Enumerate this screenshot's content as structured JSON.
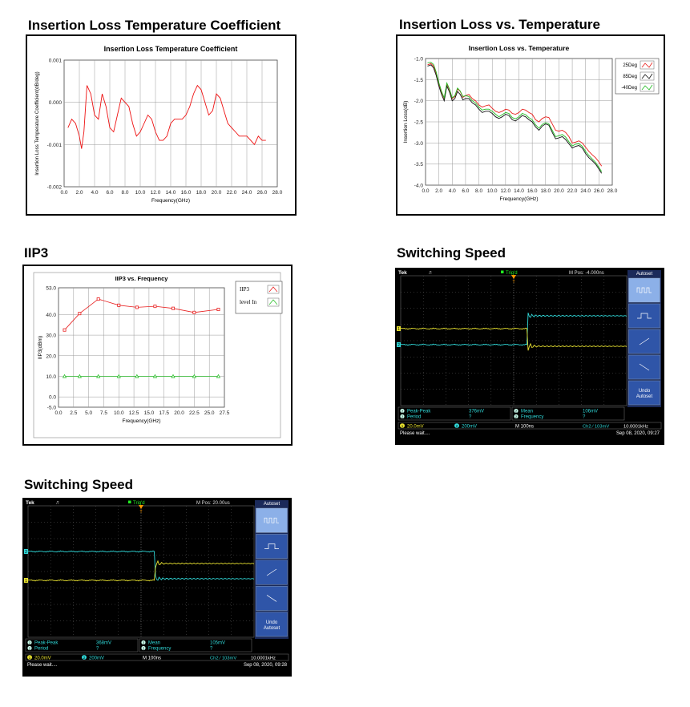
{
  "headings": {
    "il_coef": "Insertion Loss Temperature Coefficient",
    "il_temp": "Insertion Loss vs. Temperature",
    "iip3": "IIP3",
    "sw1": "Switching Speed",
    "sw2": "Switching Speed"
  },
  "chart_data": [
    {
      "id": "il_coef",
      "type": "line",
      "title": "Insertion Loss Temperature Coefficient",
      "xlabel": "Frequency(GHz)",
      "ylabel": "Insertion Loss Temperature Coefficient(dB/deg)",
      "xlim": [
        0,
        28
      ],
      "ylim": [
        -0.002,
        0.001
      ],
      "xticks": [
        "0.0",
        "2.0",
        "4.0",
        "6.0",
        "8.0",
        "10.0",
        "12.0",
        "14.0",
        "16.0",
        "18.0",
        "20.0",
        "22.0",
        "24.0",
        "26.0",
        "28.0"
      ],
      "yticks": [
        "-0.002",
        "-0.001",
        "0.000",
        "0.001"
      ],
      "grid": true,
      "color": "#ee1111",
      "series": [
        {
          "x": [
            0.5,
            1.0,
            1.5,
            2.0,
            2.3,
            2.6,
            3.0,
            3.5,
            4.0,
            4.5,
            5.0,
            5.5,
            6.0,
            6.5,
            7.0,
            7.5,
            8.0,
            8.5,
            9.0,
            9.5,
            10.0,
            10.5,
            11.0,
            11.5,
            12.0,
            12.5,
            13.0,
            13.5,
            14.0,
            14.5,
            15.0,
            15.5,
            16.0,
            16.5,
            17.0,
            17.5,
            18.0,
            18.5,
            19.0,
            19.5,
            20.0,
            20.5,
            21.0,
            21.5,
            22.0,
            22.5,
            23.0,
            23.5,
            24.0,
            24.5,
            25.0,
            25.5,
            26.0,
            26.5
          ],
          "y": [
            -0.0006,
            -0.0004,
            -0.0005,
            -0.0008,
            -0.0011,
            -0.0007,
            0.0004,
            0.0002,
            -0.0003,
            -0.0004,
            0.0002,
            -0.0001,
            -0.0006,
            -0.0007,
            -0.0003,
            0.0001,
            0.0,
            -0.0001,
            -0.0005,
            -0.0008,
            -0.0007,
            -0.0005,
            -0.0003,
            -0.0004,
            -0.0007,
            -0.0009,
            -0.0009,
            -0.0008,
            -0.0005,
            -0.0004,
            -0.0004,
            -0.0004,
            -0.0003,
            -0.0001,
            0.0002,
            0.0004,
            0.0003,
            0.0,
            -0.0003,
            -0.0002,
            0.0002,
            0.0001,
            -0.0002,
            -0.0005,
            -0.0006,
            -0.0007,
            -0.0008,
            -0.0008,
            -0.0008,
            -0.0009,
            -0.001,
            -0.0008,
            -0.0009,
            -0.0009
          ]
        }
      ]
    },
    {
      "id": "il_temp",
      "type": "line",
      "title": "Insertion Loss vs. Temperature",
      "xlabel": "Frequency(GHz)",
      "ylabel": "Insertion Loss(dB)",
      "xlim": [
        0,
        28
      ],
      "ylim": [
        -4.0,
        -1.0
      ],
      "xticks": [
        "0.0",
        "2.0",
        "4.0",
        "6.0",
        "8.0",
        "10.0",
        "12.0",
        "14.0",
        "16.0",
        "18.0",
        "20.0",
        "22.0",
        "24.0",
        "26.0",
        "28.0"
      ],
      "yticks": [
        "-4.0",
        "-3.5",
        "-3.0",
        "-2.5",
        "-2.0",
        "-1.5",
        "-1.0"
      ],
      "grid": true,
      "legend": "top-right",
      "x": [
        0.3,
        0.8,
        1.2,
        1.6,
        2.0,
        2.4,
        2.8,
        3.2,
        3.6,
        4.0,
        4.4,
        4.8,
        5.2,
        5.6,
        6.0,
        6.5,
        7.0,
        7.5,
        8.0,
        8.5,
        9.0,
        9.5,
        10.0,
        10.5,
        11.0,
        11.5,
        12.0,
        12.5,
        13.0,
        13.5,
        14.0,
        14.5,
        15.0,
        15.5,
        16.0,
        16.5,
        17.0,
        17.5,
        18.0,
        18.5,
        19.0,
        19.5,
        20.0,
        20.5,
        21.0,
        21.5,
        22.0,
        22.5,
        23.0,
        23.5,
        24.0,
        24.5,
        25.0,
        25.5,
        26.0,
        26.4
      ],
      "series": [
        {
          "name": "25Deg",
          "color": "#e8201c",
          "values": [
            -1.15,
            -1.12,
            -1.18,
            -1.35,
            -1.6,
            -1.8,
            -1.95,
            -1.6,
            -1.75,
            -1.95,
            -1.9,
            -1.72,
            -1.78,
            -1.92,
            -1.88,
            -1.85,
            -1.95,
            -2.0,
            -2.1,
            -2.15,
            -2.12,
            -2.1,
            -2.18,
            -2.25,
            -2.28,
            -2.25,
            -2.2,
            -2.22,
            -2.3,
            -2.32,
            -2.28,
            -2.2,
            -2.22,
            -2.28,
            -2.32,
            -2.45,
            -2.5,
            -2.42,
            -2.38,
            -2.4,
            -2.55,
            -2.7,
            -2.72,
            -2.7,
            -2.75,
            -2.85,
            -3.0,
            -2.98,
            -2.95,
            -3.0,
            -3.1,
            -3.2,
            -3.28,
            -3.35,
            -3.45,
            -3.55
          ]
        },
        {
          "name": "85Deg",
          "color": "#111111",
          "values": [
            -1.18,
            -1.15,
            -1.22,
            -1.4,
            -1.65,
            -1.85,
            -2.0,
            -1.65,
            -1.8,
            -2.0,
            -1.95,
            -1.78,
            -1.85,
            -1.98,
            -1.95,
            -1.95,
            -2.05,
            -2.1,
            -2.2,
            -2.28,
            -2.25,
            -2.25,
            -2.3,
            -2.38,
            -2.42,
            -2.38,
            -2.32,
            -2.35,
            -2.45,
            -2.48,
            -2.42,
            -2.35,
            -2.38,
            -2.45,
            -2.5,
            -2.62,
            -2.7,
            -2.6,
            -2.55,
            -2.58,
            -2.75,
            -2.9,
            -2.88,
            -2.85,
            -2.92,
            -3.02,
            -3.12,
            -3.08,
            -3.06,
            -3.12,
            -3.25,
            -3.35,
            -3.42,
            -3.5,
            -3.62,
            -3.72
          ]
        },
        {
          "name": "-40Deg",
          "color": "#22bb22",
          "values": [
            -1.1,
            -1.09,
            -1.14,
            -1.32,
            -1.57,
            -1.78,
            -1.93,
            -1.58,
            -1.73,
            -1.93,
            -1.88,
            -1.7,
            -1.77,
            -1.9,
            -1.88,
            -1.9,
            -2.0,
            -2.05,
            -2.15,
            -2.22,
            -2.2,
            -2.2,
            -2.25,
            -2.32,
            -2.38,
            -2.33,
            -2.28,
            -2.3,
            -2.4,
            -2.43,
            -2.38,
            -2.3,
            -2.33,
            -2.4,
            -2.45,
            -2.57,
            -2.65,
            -2.56,
            -2.52,
            -2.55,
            -2.7,
            -2.85,
            -2.83,
            -2.8,
            -2.86,
            -2.97,
            -3.07,
            -3.03,
            -3.02,
            -3.08,
            -3.2,
            -3.3,
            -3.38,
            -3.46,
            -3.58,
            -3.68
          ]
        }
      ]
    },
    {
      "id": "iip3",
      "type": "line",
      "title": "IIP3 vs. Frequency",
      "xlabel": "Frequency(GHz)",
      "ylabel": "IIP3(dBm)",
      "xlim": [
        0,
        27.5
      ],
      "ylim": [
        -5.0,
        53.0
      ],
      "xticks": [
        "0.0",
        "2.5",
        "5.0",
        "7.5",
        "10.0",
        "12.5",
        "15.0",
        "17.5",
        "20.0",
        "22.5",
        "25.0",
        "27.5"
      ],
      "yticks": [
        "-5.0",
        "0.0",
        "10.0",
        "20.0",
        "30.0",
        "40.0",
        "53.0"
      ],
      "ytick_values": [
        -5.0,
        0.0,
        10.0,
        20.0,
        30.0,
        40.0,
        53.0
      ],
      "grid": true,
      "legend": "top-right",
      "x": [
        1.0,
        3.5,
        6.0,
        8.5,
        11.0,
        13.5,
        16.0,
        18.5,
        21.0,
        23.5,
        26.5
      ],
      "categories_note": "",
      "series": [
        {
          "name": "IIP3",
          "color": "#e82020",
          "marker": "square",
          "x": [
            1.0,
            3.5,
            6.6,
            10.0,
            13.0,
            16.0,
            19.0,
            22.5,
            26.5
          ],
          "values": [
            32.5,
            40.5,
            47.5,
            44.5,
            43.5,
            44.0,
            43.0,
            41.0,
            42.5
          ]
        },
        {
          "name": "level In",
          "color": "#30c030",
          "marker": "triangle",
          "x": [
            1.0,
            3.5,
            6.6,
            10.0,
            13.0,
            16.0,
            19.0,
            22.5,
            26.5
          ],
          "values": [
            10.0,
            10.0,
            10.0,
            10.0,
            10.0,
            10.0,
            10.0,
            10.0,
            10.0
          ]
        }
      ]
    }
  ],
  "scope1": {
    "brand": "Tek",
    "trig_status": "Trig'd",
    "mpos": "M Pos: -4.000ns",
    "menu_title": "Autoset",
    "undo": [
      "Undo",
      "Autoset"
    ],
    "cursor_marker": "T",
    "ch_markers": [
      "2",
      "1"
    ],
    "meas": [
      {
        "ch": "2",
        "name": "Peak-Peak",
        "value": "376mV"
      },
      {
        "ch": "2",
        "name": "Period",
        "value": "?"
      },
      {
        "ch": "2",
        "name": "Mean",
        "value": "106mV"
      },
      {
        "ch": "2",
        "name": "Frequency",
        "value": "?"
      }
    ],
    "ch1_scale": "20.0mV",
    "ch2_scale": "200mV",
    "time_scale": "M 100ns",
    "trigger": "Ch2 ⁄ 103mV",
    "trig_freq": "10.0001kHz",
    "status": "Please wait....",
    "datetime": "Sep 08, 2020, 09:27"
  },
  "scope2": {
    "brand": "Tek",
    "trig_status": "Trig'd",
    "mpos": "M Pos: 20.00us",
    "menu_title": "Autoset",
    "undo": [
      "Undo",
      "Autoset"
    ],
    "cursor_marker": "T",
    "ch_markers": [
      "2",
      "1"
    ],
    "meas": [
      {
        "ch": "2",
        "name": "Peak-Peak",
        "value": "368mV"
      },
      {
        "ch": "2",
        "name": "Period",
        "value": "?"
      },
      {
        "ch": "2",
        "name": "Mean",
        "value": "105mV"
      },
      {
        "ch": "2",
        "name": "Frequency",
        "value": "?"
      }
    ],
    "ch1_scale": "20.0mV",
    "ch2_scale": "200mV",
    "time_scale": "M 100ns",
    "trigger": "Ch2 ⁄ 103mV",
    "trig_freq": "10.0001kHz",
    "status": "Please wait....",
    "datetime": "Sep 08, 2020, 09:28"
  },
  "colors": {
    "scope_bg": "#000000",
    "scope_grid": "#5a5a5a",
    "ch1": "#e6e030",
    "ch2": "#30d8d8",
    "menu_bg": "#2f55a8",
    "menu_active": "#8cb0e8"
  }
}
